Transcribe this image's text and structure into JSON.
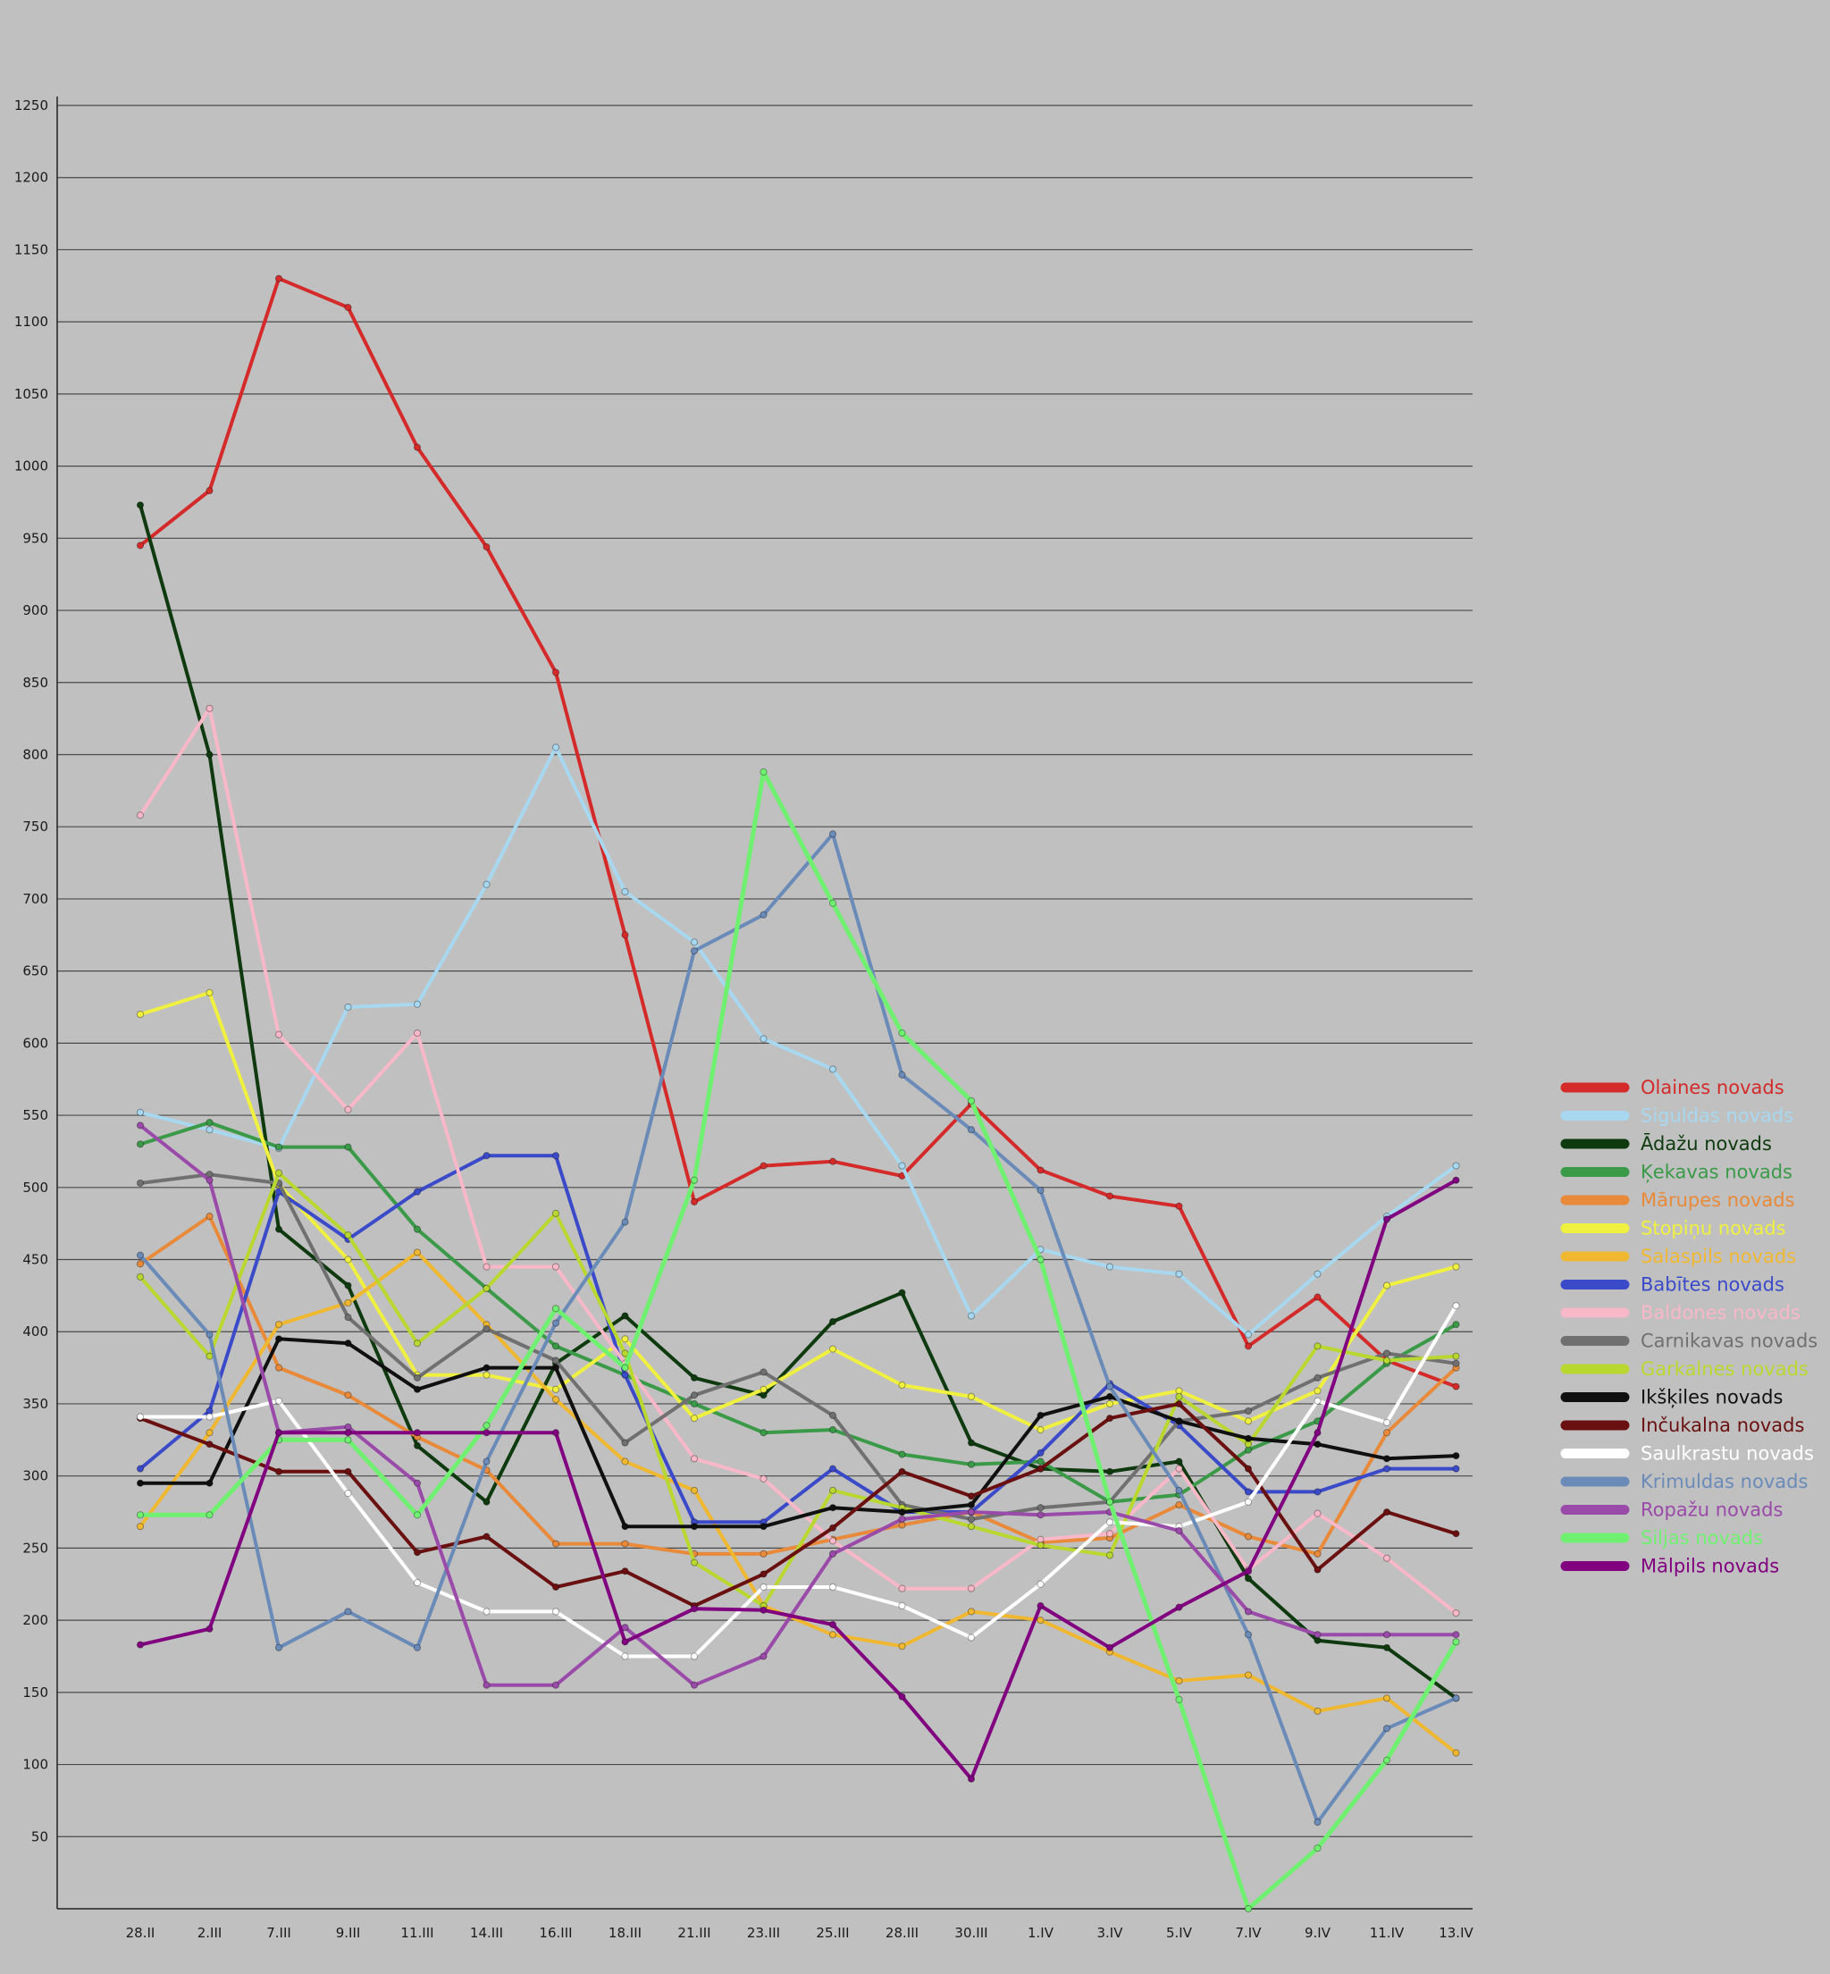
{
  "chart_data": {
    "type": "line",
    "title": "",
    "xlabel": "",
    "ylabel": "",
    "ylim": [
      0,
      1250
    ],
    "grid": true,
    "legend_position": "right",
    "x": [
      "28.II",
      "2.III",
      "7.III",
      "9.III",
      "11.III",
      "14.III",
      "16.III",
      "18.III",
      "21.III",
      "23.III",
      "25.III",
      "28.III",
      "30.III",
      "1.IV",
      "3.IV",
      "5.IV",
      "7.IV",
      "9.IV",
      "11.IV",
      "13.IV"
    ],
    "yticks": [
      50,
      100,
      150,
      200,
      250,
      300,
      350,
      400,
      450,
      500,
      550,
      600,
      650,
      700,
      750,
      800,
      850,
      900,
      950,
      1000,
      1050,
      1100,
      1150,
      1200,
      1250
    ],
    "series": [
      {
        "name": "Olaines novads",
        "color": "#d42a2a",
        "width": 4,
        "values": [
          945,
          983,
          1130,
          1110,
          1013,
          944,
          857,
          675,
          490,
          515,
          518,
          508,
          558,
          512,
          494,
          487,
          390,
          424,
          380,
          362
        ]
      },
      {
        "name": "Siguldas novads",
        "color": "#a8d8f0",
        "width": 4,
        "values": [
          552,
          540,
          527,
          625,
          627,
          710,
          805,
          705,
          670,
          603,
          582,
          515,
          411,
          457,
          445,
          440,
          398,
          440,
          480,
          515
        ]
      },
      {
        "name": "Ādažu novads",
        "color": "#0f3a0f",
        "width": 4,
        "values": [
          973,
          800,
          471,
          432,
          321,
          282,
          378,
          411,
          368,
          356,
          407,
          427,
          323,
          305,
          303,
          310,
          229,
          186,
          181,
          146
        ]
      },
      {
        "name": "Ķekavas novads",
        "color": "#3a9a48",
        "width": 4,
        "values": [
          530,
          545,
          528,
          528,
          471,
          430,
          390,
          370,
          350,
          330,
          332,
          315,
          308,
          310,
          282,
          287,
          318,
          338,
          378,
          405
        ]
      },
      {
        "name": "Mārupes novads",
        "color": "#e88a3a",
        "width": 4,
        "values": [
          447,
          480,
          375,
          356,
          327,
          304,
          253,
          253,
          246,
          246,
          256,
          266,
          275,
          254,
          257,
          280,
          258,
          246,
          330,
          375
        ]
      },
      {
        "name": "Stopiņu novads",
        "color": "#f0f040",
        "width": 4,
        "values": [
          620,
          635,
          502,
          450,
          370,
          370,
          360,
          395,
          340,
          360,
          388,
          363,
          355,
          332,
          350,
          359,
          338,
          359,
          432,
          445
        ]
      },
      {
        "name": "Salaspils novads",
        "color": "#f0b830",
        "width": 4,
        "values": [
          265,
          330,
          405,
          420,
          455,
          405,
          353,
          310,
          290,
          210,
          190,
          182,
          206,
          200,
          178,
          158,
          162,
          137,
          146,
          108
        ]
      },
      {
        "name": "Babītes novads",
        "color": "#3a4ac8",
        "width": 4,
        "values": [
          305,
          345,
          497,
          464,
          497,
          522,
          522,
          370,
          268,
          268,
          305,
          275,
          275,
          316,
          364,
          335,
          289,
          289,
          305,
          305
        ]
      },
      {
        "name": "Baldones novads",
        "color": "#f8b8c8",
        "width": 4,
        "values": [
          758,
          832,
          606,
          554,
          607,
          445,
          445,
          378,
          312,
          298,
          255,
          222,
          222,
          256,
          260,
          305,
          235,
          274,
          243,
          205
        ]
      },
      {
        "name": "Carnikavas novads",
        "color": "#707070",
        "width": 4,
        "values": [
          503,
          509,
          503,
          410,
          368,
          402,
          380,
          323,
          356,
          372,
          342,
          280,
          270,
          278,
          282,
          338,
          345,
          368,
          385,
          378
        ]
      },
      {
        "name": "Garkalnes novads",
        "color": "#b8d830",
        "width": 4,
        "values": [
          438,
          383,
          510,
          467,
          392,
          430,
          482,
          385,
          240,
          210,
          290,
          278,
          265,
          252,
          245,
          355,
          322,
          390,
          380,
          383
        ]
      },
      {
        "name": "Ikšķiles novads",
        "color": "#101010",
        "width": 4,
        "values": [
          295,
          295,
          395,
          392,
          360,
          375,
          375,
          265,
          265,
          265,
          278,
          275,
          280,
          342,
          355,
          338,
          326,
          322,
          312,
          314
        ]
      },
      {
        "name": "Inčukalna novads",
        "color": "#6a1010",
        "width": 4,
        "values": [
          340,
          322,
          303,
          303,
          247,
          258,
          223,
          234,
          210,
          232,
          264,
          303,
          286,
          305,
          340,
          350,
          305,
          235,
          275,
          260
        ]
      },
      {
        "name": "Saulkrastu novads",
        "color": "#ffffff",
        "width": 4,
        "values": [
          341,
          341,
          352,
          288,
          226,
          206,
          206,
          175,
          175,
          223,
          223,
          210,
          188,
          225,
          268,
          265,
          282,
          352,
          337,
          418
        ]
      },
      {
        "name": "Krimuldas novads",
        "color": "#6a8ab8",
        "width": 4,
        "values": [
          453,
          398,
          181,
          206,
          181,
          310,
          406,
          476,
          664,
          689,
          745,
          578,
          540,
          498,
          362,
          290,
          190,
          60,
          125,
          146
        ]
      },
      {
        "name": "Ropažu novads",
        "color": "#9a4aa8",
        "width": 4,
        "values": [
          543,
          505,
          330,
          334,
          295,
          155,
          155,
          195,
          155,
          175,
          246,
          270,
          275,
          273,
          275,
          262,
          206,
          190,
          190,
          190
        ]
      },
      {
        "name": "Siljas novads",
        "color": "#70f070",
        "width": 5,
        "values": [
          273,
          273,
          325,
          325,
          273,
          335,
          416,
          375,
          505,
          788,
          697,
          607,
          560,
          450,
          282,
          145,
          0,
          42,
          103,
          185
        ]
      },
      {
        "name": "Mālpils novads",
        "color": "#800080",
        "width": 4,
        "values": [
          183,
          194,
          330,
          330,
          330,
          330,
          330,
          185,
          208,
          207,
          197,
          147,
          90,
          210,
          181,
          209,
          234,
          330,
          478,
          505
        ]
      }
    ]
  }
}
